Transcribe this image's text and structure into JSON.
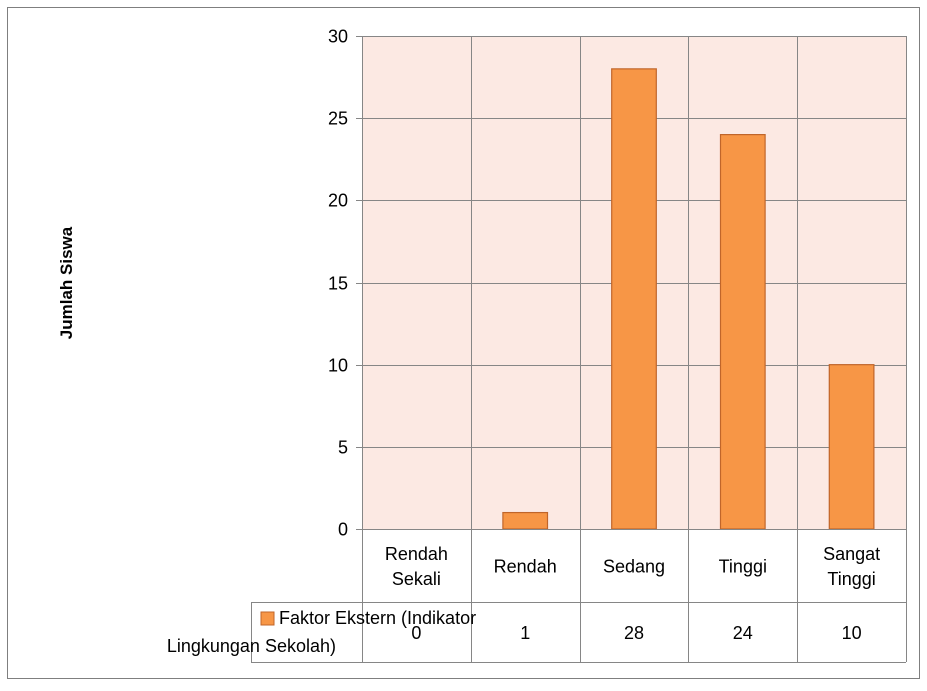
{
  "chart_data": {
    "type": "bar",
    "title": "",
    "xlabel": "",
    "ylabel": "Jumlah Siswa",
    "ylim": [
      0,
      30
    ],
    "yticks": [
      0,
      5,
      10,
      15,
      20,
      25,
      30
    ],
    "grid": true,
    "categories": [
      [
        "Rendah",
        "Sekali"
      ],
      [
        "Rendah"
      ],
      [
        "Sedang"
      ],
      [
        "Tinggi"
      ],
      [
        "Sangat",
        "Tinggi"
      ]
    ],
    "series": [
      {
        "name_lines": [
          "Faktor Ekstern (Indikator",
          "Lingkungan Sekolah)"
        ],
        "values": [
          0,
          1,
          28,
          24,
          10
        ]
      }
    ],
    "legend": "data-table",
    "colors": {
      "bar_fill": "#F79646",
      "bar_stroke": "#C0652A",
      "plot_background": "#FCE9E3",
      "gridline": "#868686",
      "table_border": "#868686",
      "outer_border": "#7F7F7F"
    }
  }
}
